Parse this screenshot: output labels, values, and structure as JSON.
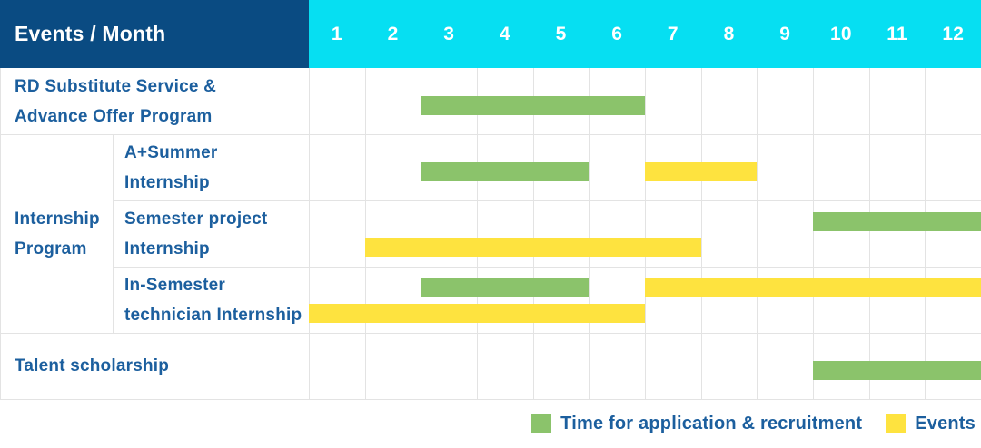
{
  "header": {
    "corner_label": "Events / Month",
    "months": [
      "1",
      "2",
      "3",
      "4",
      "5",
      "6",
      "7",
      "8",
      "9",
      "10",
      "11",
      "12"
    ]
  },
  "colors": {
    "navy": "#0a4b82",
    "cyan": "#06dff2",
    "green": "#8bc36b",
    "yellow": "#fee33f",
    "label_blue": "#1c5f9e",
    "grid": "#e3e3e3"
  },
  "chart_data": {
    "type": "gantt",
    "x_unit": "month",
    "x_range": [
      1,
      12
    ],
    "grid": true,
    "legend_position": "bottom-right",
    "legend": [
      {
        "label": "Time for application & recruitment",
        "type": "application",
        "color_key": "green"
      },
      {
        "label": "Events",
        "type": "event",
        "color_key": "yellow"
      }
    ],
    "group_label_lines": [
      "Internship",
      "Program"
    ],
    "rows": [
      {
        "group": null,
        "label_lines": [
          "RD Substitute Service &",
          "Advance Offer Program"
        ],
        "lines": [
          [
            {
              "type": "application",
              "start_month": 3,
              "end_month": 6
            }
          ]
        ]
      },
      {
        "group": "Internship Program",
        "label_lines": [
          "A+Summer",
          "Internship"
        ],
        "lines": [
          [
            {
              "type": "application",
              "start_month": 3,
              "end_month": 5
            },
            {
              "type": "event",
              "start_month": 7,
              "end_month": 8
            }
          ]
        ]
      },
      {
        "group": "Internship Program",
        "label_lines": [
          "Semester project",
          "Internship"
        ],
        "lines": [
          [
            {
              "type": "application",
              "start_month": 10,
              "end_month": 12
            }
          ],
          [
            {
              "type": "event",
              "start_month": 2,
              "end_month": 7
            }
          ]
        ]
      },
      {
        "group": "Internship Program",
        "label_lines": [
          "In-Semester",
          "technician Internship"
        ],
        "lines": [
          [
            {
              "type": "application",
              "start_month": 3,
              "end_month": 5
            },
            {
              "type": "event",
              "start_month": 7,
              "end_month": 12
            }
          ],
          [
            {
              "type": "event",
              "start_month": 1,
              "end_month": 6
            }
          ]
        ]
      },
      {
        "group": null,
        "label_lines": [
          "Talent scholarship"
        ],
        "lines": [
          [
            {
              "type": "application",
              "start_month": 10,
              "end_month": 12
            }
          ]
        ]
      }
    ]
  }
}
